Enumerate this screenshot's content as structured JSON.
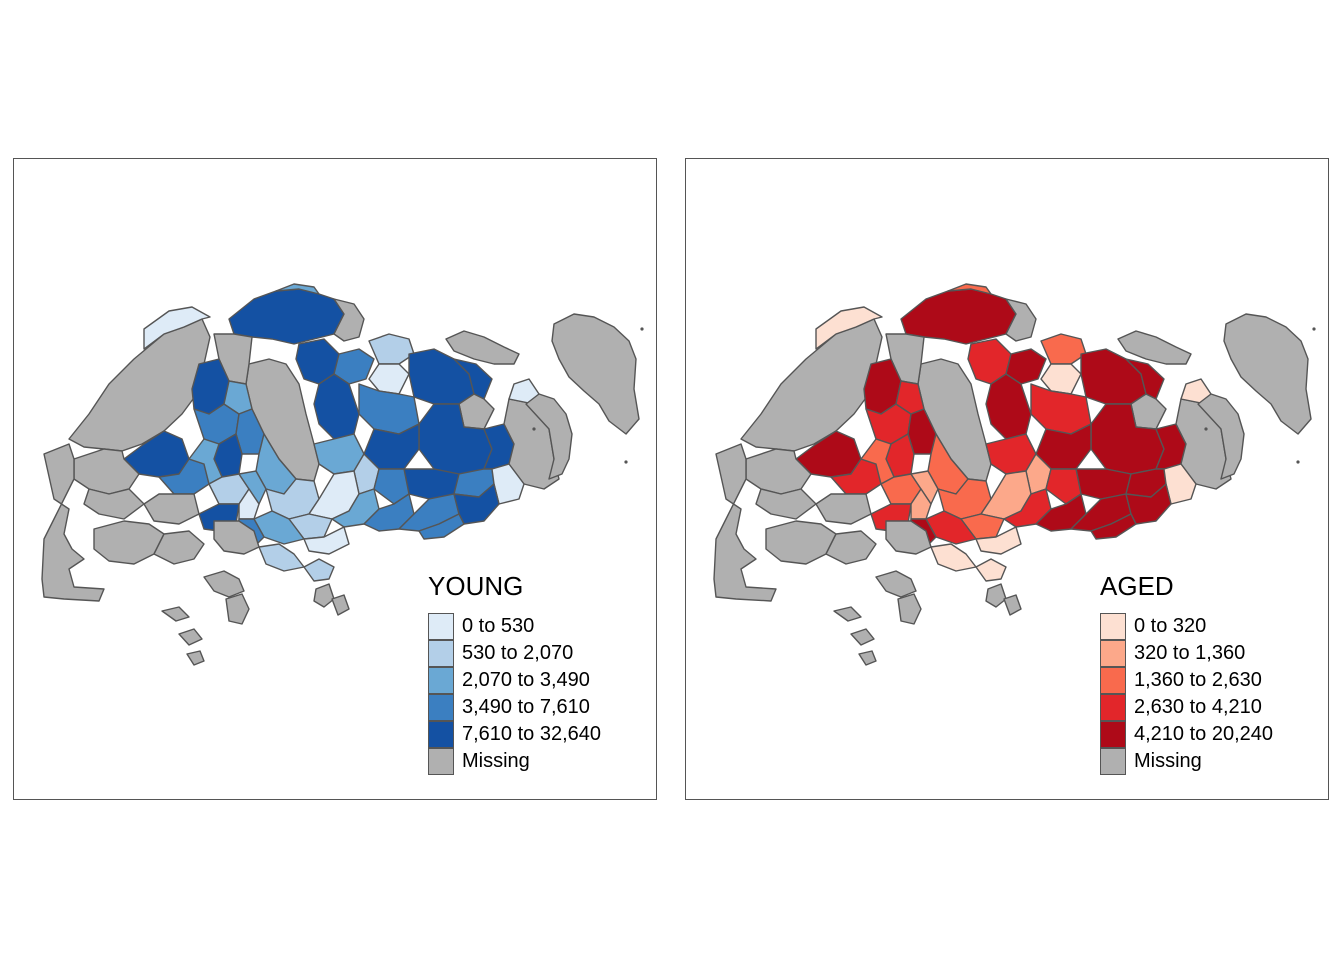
{
  "maps": [
    {
      "variable": "YOUNG",
      "legend": {
        "title": "YOUNG",
        "classes": [
          {
            "label": "0 to 530",
            "color": "#deebf7"
          },
          {
            "label": "530 to 2,070",
            "color": "#b3cfe8"
          },
          {
            "label": "2,070 to 3,490",
            "color": "#6aa8d4"
          },
          {
            "label": "3,490 to 7,610",
            "color": "#3b7fc1"
          },
          {
            "label": "7,610 to 32,640",
            "color": "#1451a3"
          },
          {
            "label": "Missing",
            "color": "#b0b0b0"
          }
        ]
      }
    },
    {
      "variable": "AGED",
      "legend": {
        "title": "AGED",
        "classes": [
          {
            "label": "0 to 320",
            "color": "#fde0d2"
          },
          {
            "label": "320 to 1,360",
            "color": "#fca88a"
          },
          {
            "label": "1,360 to 2,630",
            "color": "#f96a4d"
          },
          {
            "label": "2,630 to 4,210",
            "color": "#e2262a"
          },
          {
            "label": "4,210 to 20,240",
            "color": "#ae0a18"
          },
          {
            "label": "Missing",
            "color": "#b0b0b0"
          }
        ]
      }
    }
  ],
  "style": {
    "border_color": "#555555",
    "missing_color": "#b0b0b0"
  }
}
